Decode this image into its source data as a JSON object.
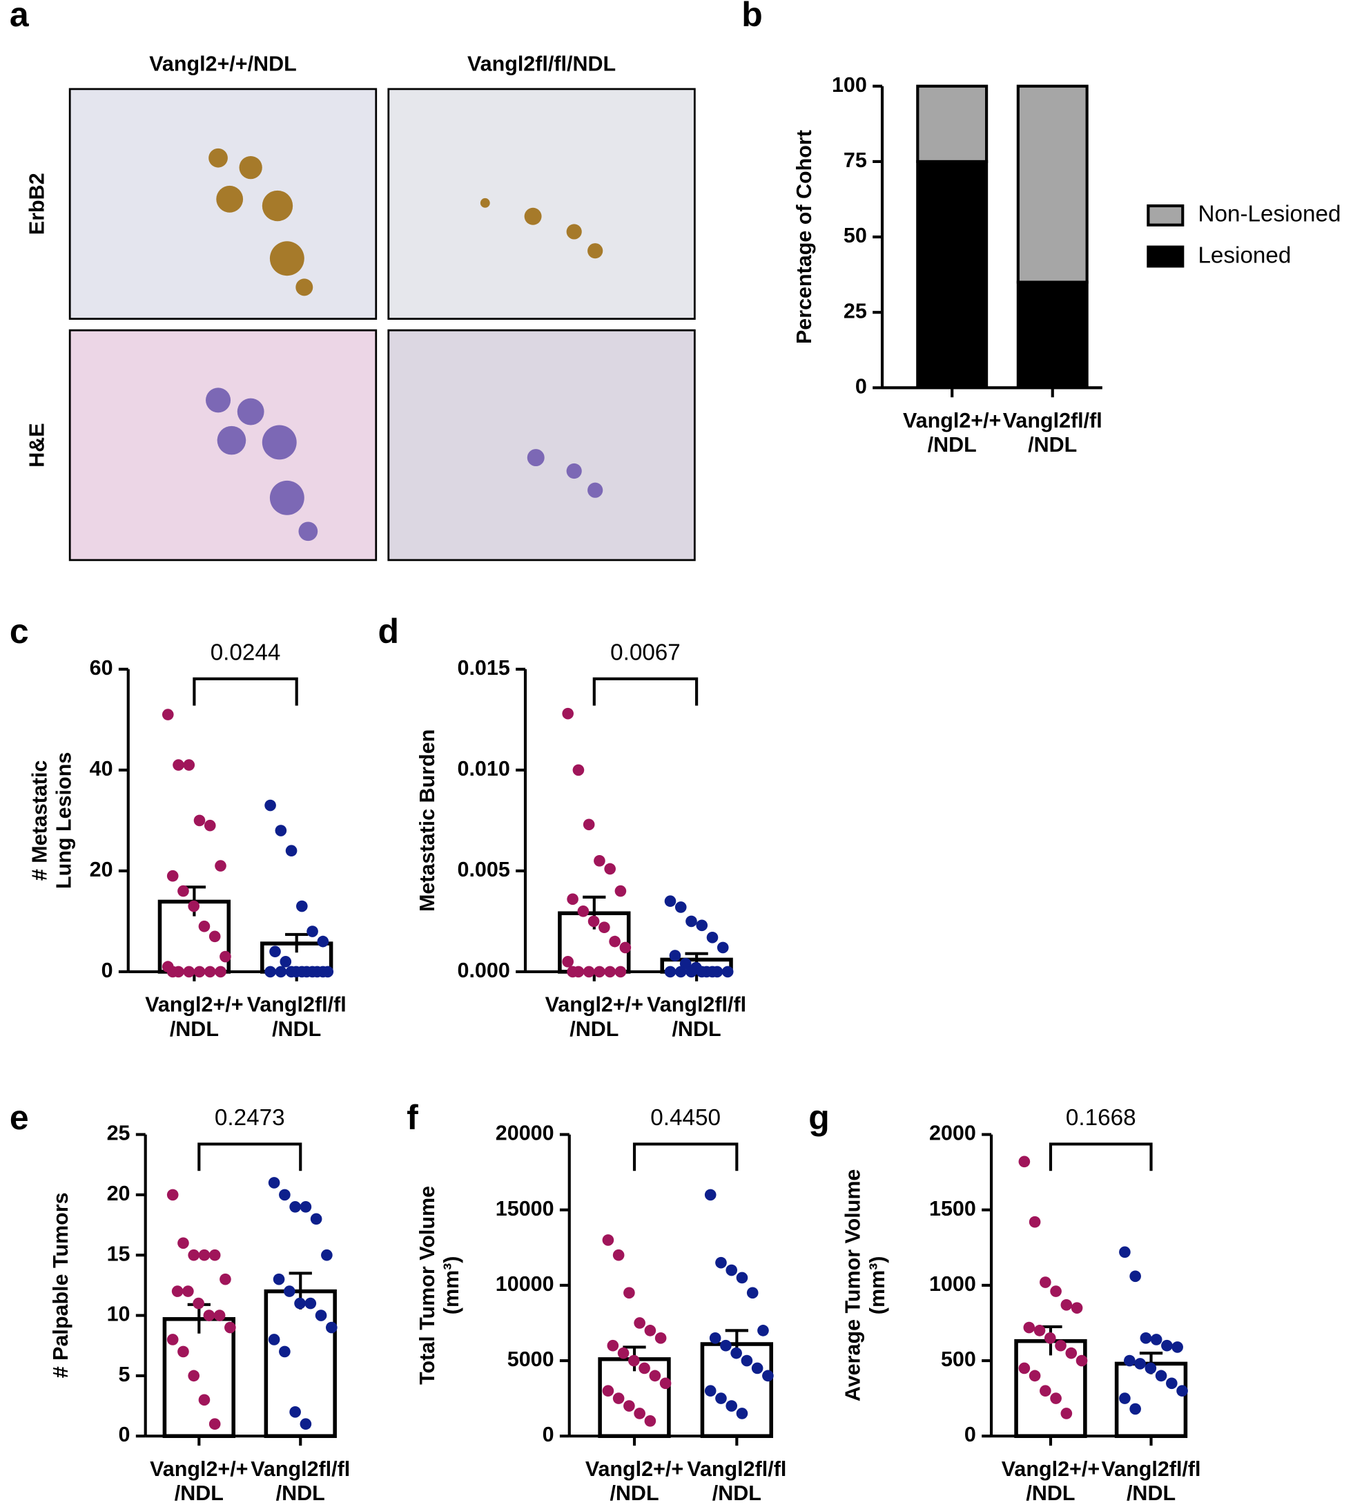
{
  "image_panel": {
    "panel": "a",
    "columns": [
      "Vangl2+/+/NDL",
      "Vangl2fl/fl/NDL"
    ],
    "rows": [
      "ErbB2",
      "H&E"
    ]
  },
  "chart_data": [
    {
      "type": "stacked",
      "panel": "b",
      "ylabel": "Percentage of Cohort",
      "categories": [
        "Vangl2+/+\n/NDL",
        "Vangl2fl/fl\n/NDL"
      ],
      "series": [
        {
          "name": "Lesioned",
          "color": "#000000",
          "values": [
            75,
            35
          ]
        },
        {
          "name": "Non-Lesioned",
          "color": "#a6a6a6",
          "values": [
            25,
            65
          ]
        }
      ],
      "ylim": [
        0,
        100
      ],
      "yticks": [
        0,
        25,
        50,
        75,
        100
      ]
    },
    {
      "type": "dotbar",
      "panel": "c",
      "ylabel": "# Metastatic\nLung Lesions",
      "annotation": "0.0244",
      "categories": [
        "Vangl2+/+\n/NDL",
        "Vangl2fl/fl\n/NDL"
      ],
      "values": [
        13.9,
        5.6
      ],
      "errors": [
        2.9,
        1.8
      ],
      "point_colors": [
        "#a0155a",
        "#0d1f8c"
      ],
      "points": [
        [
          51,
          41,
          41,
          30,
          29,
          21,
          19,
          16,
          13,
          9,
          7,
          3,
          1,
          0,
          0,
          0,
          0,
          0,
          0
        ],
        [
          33,
          28,
          24,
          13,
          8,
          6,
          4,
          2,
          0,
          0,
          0,
          0,
          0,
          0,
          0,
          0,
          0,
          0
        ]
      ],
      "ylim": [
        0,
        60
      ],
      "yticks": [
        0,
        20,
        40,
        60
      ]
    },
    {
      "type": "dotbar",
      "panel": "d",
      "ylabel": "Metastatic Burden",
      "annotation": "0.0067",
      "categories": [
        "Vangl2+/+\n/NDL",
        "Vangl2fl/fl\n/NDL"
      ],
      "values": [
        0.0029,
        0.0006
      ],
      "errors": [
        0.0008,
        0.0003
      ],
      "point_colors": [
        "#a0155a",
        "#0d1f8c"
      ],
      "points": [
        [
          0.0128,
          0.01,
          0.0073,
          0.0055,
          0.0051,
          0.004,
          0.0036,
          0.003,
          0.0025,
          0.0022,
          0.0015,
          0.0012,
          0.0005,
          0,
          0,
          0,
          0,
          0,
          0
        ],
        [
          0.0035,
          0.0032,
          0.0025,
          0.0023,
          0.0017,
          0.0012,
          0.0008,
          0.0004,
          0.0002,
          0,
          0,
          0,
          0,
          0,
          0,
          0,
          0
        ]
      ],
      "ylim": [
        0,
        0.015
      ],
      "yticks": [
        {
          "value": 0,
          "label": "0.000"
        },
        {
          "value": 0.005,
          "label": "0.005"
        },
        {
          "value": 0.01,
          "label": "0.010"
        },
        {
          "value": 0.015,
          "label": "0.015"
        }
      ]
    },
    {
      "type": "dotbar",
      "panel": "e",
      "ylabel": "# Palpable Tumors",
      "annotation": "0.2473",
      "categories": [
        "Vangl2+/+\n/NDL",
        "Vangl2fl/fl\n/NDL"
      ],
      "values": [
        9.7,
        12
      ],
      "errors": [
        1.2,
        1.5
      ],
      "point_colors": [
        "#a0155a",
        "#0d1f8c"
      ],
      "points": [
        [
          20,
          16,
          15,
          15,
          15,
          13,
          12,
          12,
          11,
          10,
          10,
          9,
          8,
          7,
          5,
          3,
          1
        ],
        [
          21,
          20,
          19,
          19,
          18,
          15,
          13,
          12,
          11,
          11,
          10,
          9,
          8,
          7,
          2,
          1
        ]
      ],
      "ylim": [
        0,
        25
      ],
      "yticks": [
        0,
        5,
        10,
        15,
        20,
        25
      ]
    },
    {
      "type": "dotbar",
      "panel": "f",
      "ylabel": "Total Tumor Volume\n(mm³)",
      "annotation": "0.4450",
      "categories": [
        "Vangl2+/+\n/NDL",
        "Vangl2fl/fl\n/NDL"
      ],
      "values": [
        5100,
        6100
      ],
      "errors": [
        800,
        900
      ],
      "point_colors": [
        "#a0155a",
        "#0d1f8c"
      ],
      "points": [
        [
          13000,
          12000,
          9500,
          7500,
          7000,
          6500,
          6000,
          5500,
          5000,
          4500,
          4000,
          3500,
          3000,
          2500,
          2000,
          1500,
          1000
        ],
        [
          16000,
          11500,
          11000,
          10500,
          9500,
          7000,
          6500,
          6000,
          5500,
          5000,
          4500,
          4000,
          3000,
          2500,
          2000,
          1500
        ]
      ],
      "ylim": [
        0,
        20000
      ],
      "yticks": [
        0,
        5000,
        10000,
        15000,
        20000
      ]
    },
    {
      "type": "dotbar",
      "panel": "g",
      "ylabel": "Average Tumor Volume\n(mm³)",
      "annotation": "0.1668",
      "categories": [
        "Vangl2+/+\n/NDL",
        "Vangl2fl/fl\n/NDL"
      ],
      "values": [
        630,
        480
      ],
      "errors": [
        95,
        70
      ],
      "point_colors": [
        "#a0155a",
        "#0d1f8c"
      ],
      "points": [
        [
          1820,
          1420,
          1020,
          960,
          870,
          850,
          720,
          700,
          650,
          600,
          550,
          500,
          450,
          400,
          300,
          250,
          150
        ],
        [
          1220,
          1060,
          650,
          640,
          600,
          590,
          500,
          480,
          450,
          400,
          350,
          300,
          250,
          180
        ]
      ],
      "ylim": [
        0,
        2000
      ],
      "yticks": [
        0,
        500,
        1000,
        1500,
        2000
      ]
    }
  ]
}
